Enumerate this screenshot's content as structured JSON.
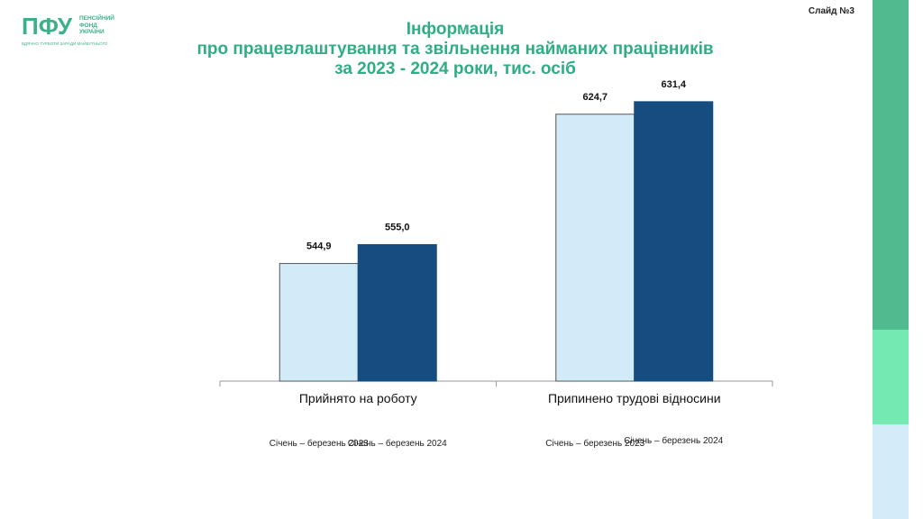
{
  "logo": {
    "mark": "ПФУ",
    "lines": [
      "ПЕНСІЙНИЙ",
      "ФОНД",
      "УКРАЇНИ"
    ],
    "tagline": "ВДЯЧНО ТУРБОТИ ЗАРАДИ МАЙБУТНЬОГО"
  },
  "slide_number": "Слайд №3",
  "colors": {
    "title": "#2fae84",
    "series_2023": "#d2ebf8",
    "series_2024": "#154d80",
    "strip_top": "#4fbb8f",
    "strip_mid": "#74eab2",
    "strip_bottom": "#d4ecfa"
  },
  "chart_data": {
    "type": "bar",
    "title": [
      "Інформація",
      "про працевлаштування та звільнення найманих працівників",
      "за 2023 - 2024  роки,  тис. осіб"
    ],
    "categories": [
      "Прийнято на роботу",
      "Припинено трудові відносини"
    ],
    "series": [
      {
        "name": "Січень – березень 2023",
        "values": [
          544.9,
          624.7
        ],
        "labels": [
          "544,9",
          "624,7"
        ]
      },
      {
        "name": "Січень – березень 2024",
        "values": [
          555.0,
          631.4
        ],
        "labels": [
          "555,0",
          "631,4"
        ]
      }
    ],
    "ylim": [
      482,
      640
    ],
    "grid": false,
    "legend_placement": "bottom, under each category"
  }
}
